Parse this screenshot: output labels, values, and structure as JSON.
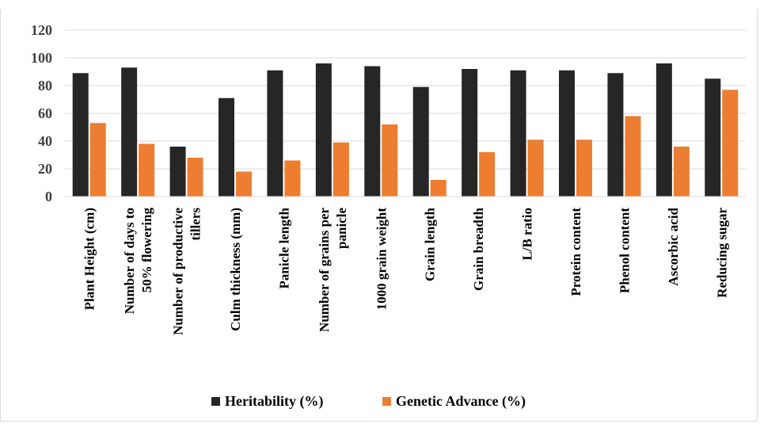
{
  "chart_data": {
    "type": "bar",
    "categories": [
      [
        "Plant Height (cm)"
      ],
      [
        "Number of days to",
        "50% flowering"
      ],
      [
        "Number of productive",
        "tillers"
      ],
      [
        "Culm thickness (mm)"
      ],
      [
        "Panicle length"
      ],
      [
        "Number of grains per",
        "panicle"
      ],
      [
        "1000 grain weight"
      ],
      [
        "Grain length"
      ],
      [
        "Grain breadth"
      ],
      [
        "L/B ratio"
      ],
      [
        "Protein content"
      ],
      [
        "Phenol content"
      ],
      [
        "Ascorbic acid"
      ],
      [
        "Reducing sugar"
      ]
    ],
    "series": [
      {
        "name": "Heritability (%)",
        "color": "#262626",
        "values": [
          89,
          93,
          36,
          71,
          91,
          96,
          94,
          79,
          92,
          91,
          91,
          89,
          96,
          85
        ]
      },
      {
        "name": "Genetic Advance (%)",
        "color": "#ED7D31",
        "values": [
          53,
          38,
          28,
          18,
          26,
          39,
          52,
          12,
          32,
          41,
          41,
          58,
          36,
          77
        ]
      }
    ],
    "ylim": [
      0,
      120
    ],
    "yticks": [
      0,
      20,
      40,
      60,
      80,
      100,
      120
    ],
    "grid": true,
    "legend": "bottom"
  }
}
